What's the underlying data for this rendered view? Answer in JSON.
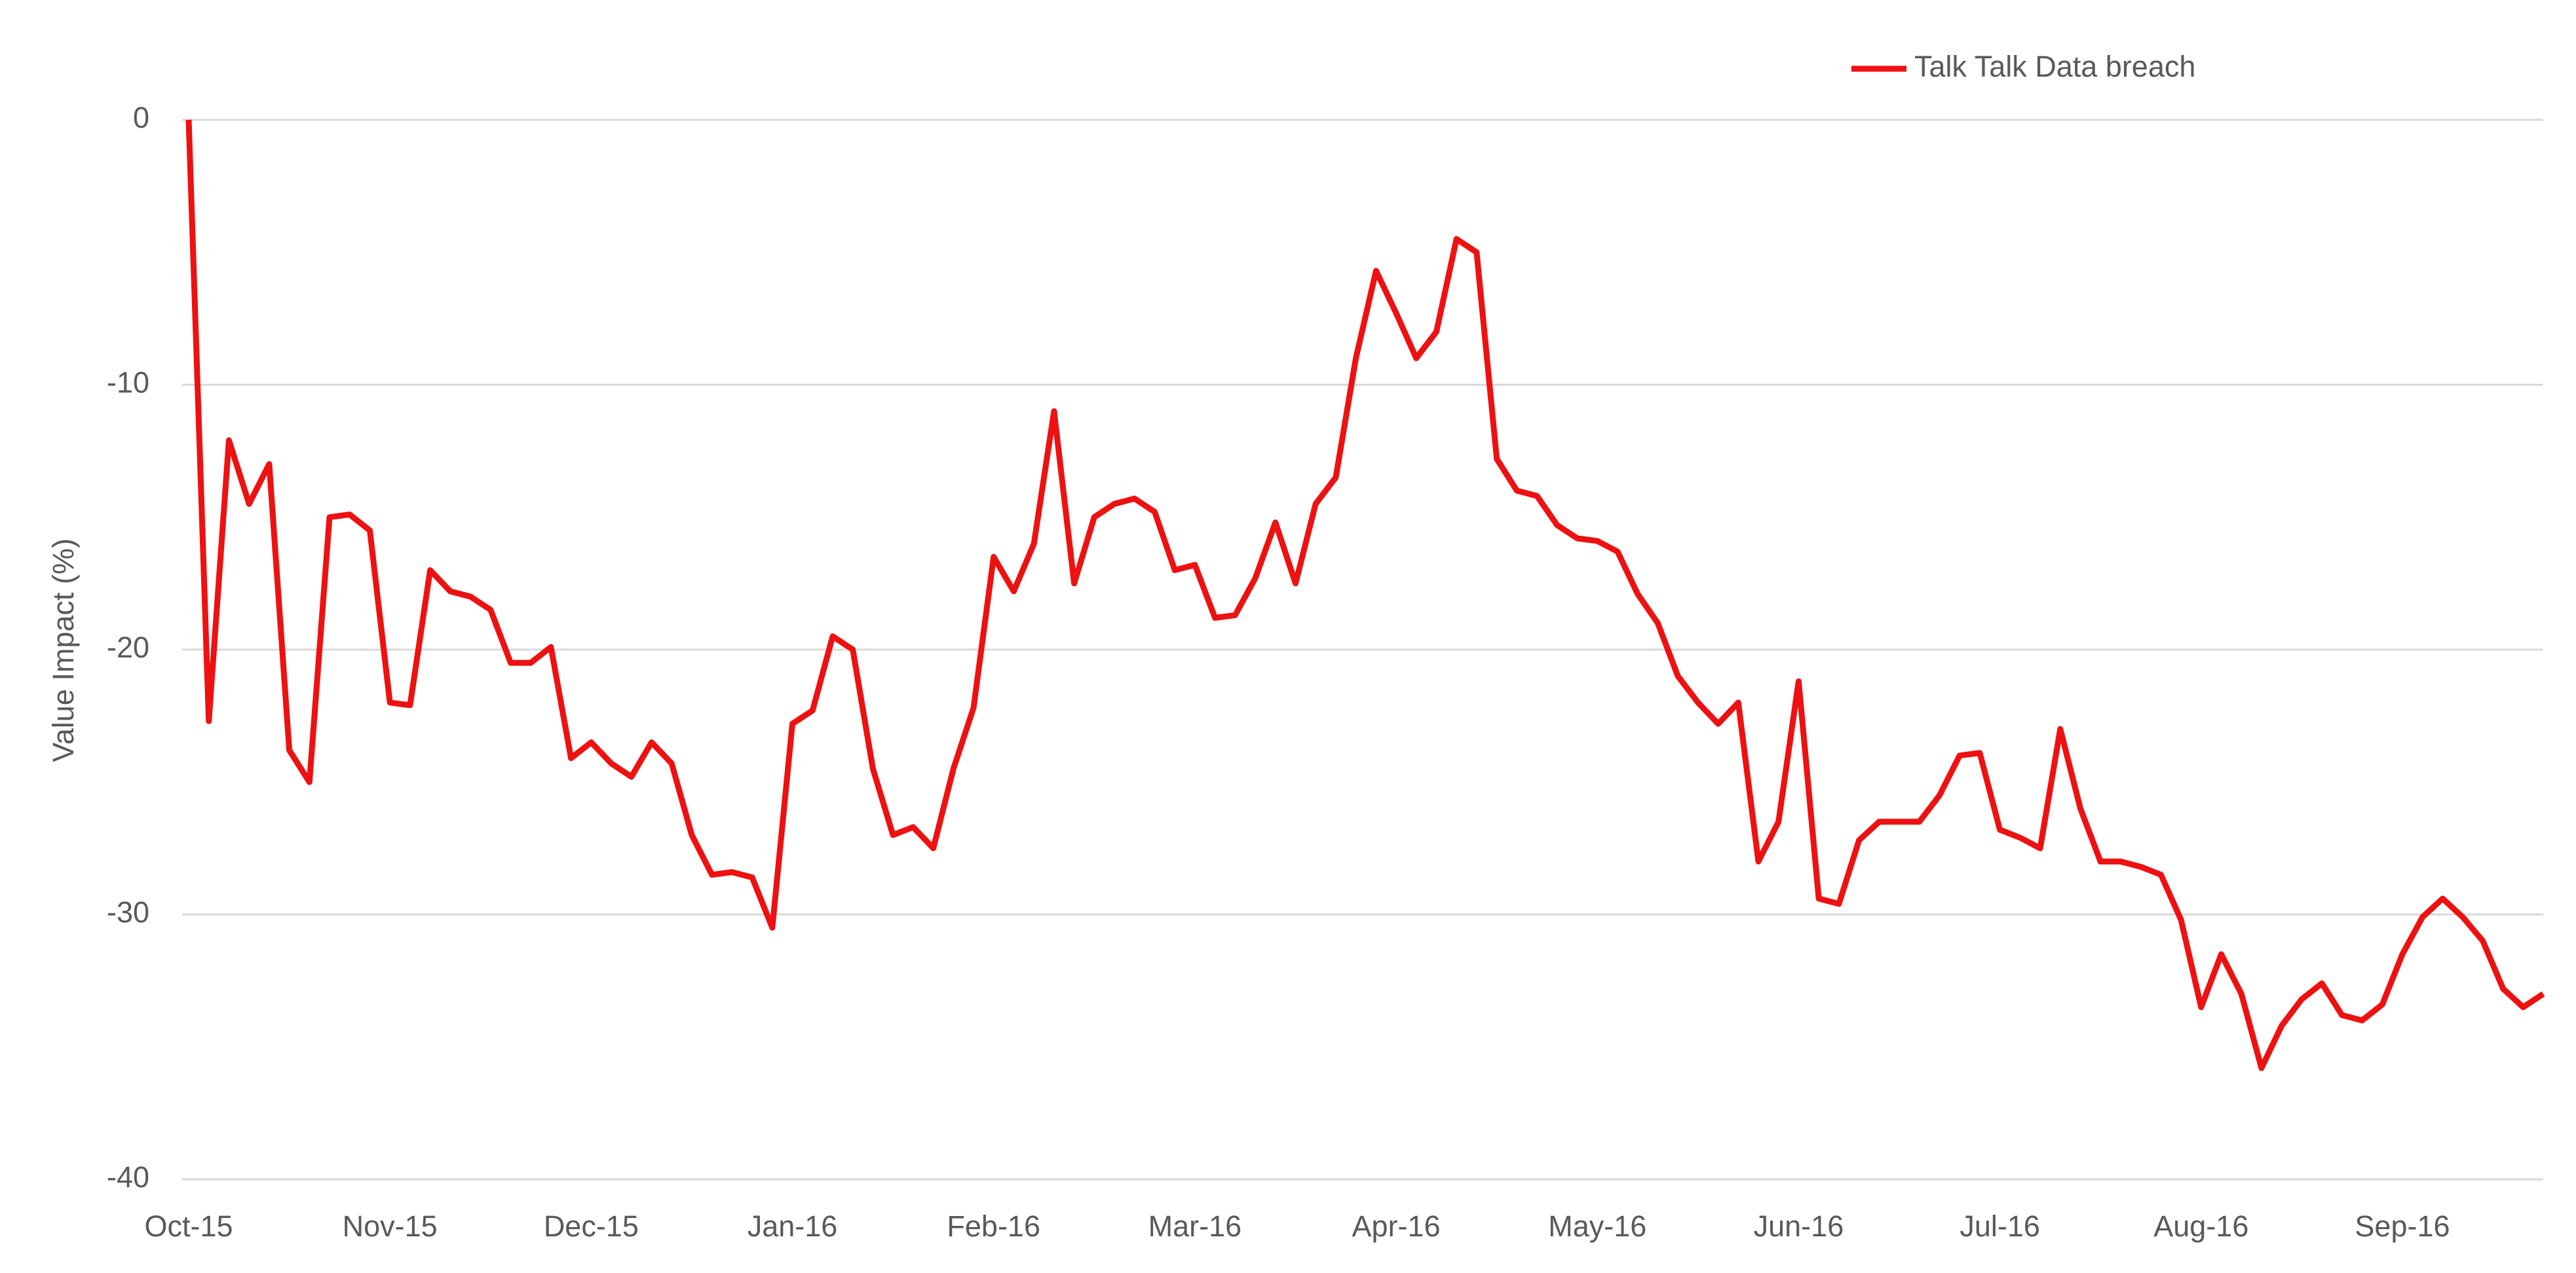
{
  "chart_data": {
    "type": "line",
    "y_label": "Value Impact (%)",
    "categories": [
      "Oct-15",
      null,
      null,
      null,
      null,
      null,
      null,
      null,
      null,
      null,
      "Nov-15",
      null,
      null,
      null,
      null,
      null,
      null,
      null,
      null,
      null,
      "Dec-15",
      null,
      null,
      null,
      null,
      null,
      null,
      null,
      null,
      null,
      "Jan-16",
      null,
      null,
      null,
      null,
      null,
      null,
      null,
      null,
      null,
      "Feb-16",
      null,
      null,
      null,
      null,
      null,
      null,
      null,
      null,
      null,
      "Mar-16",
      null,
      null,
      null,
      null,
      null,
      null,
      null,
      null,
      null,
      "Apr-16",
      null,
      null,
      null,
      null,
      null,
      null,
      null,
      null,
      null,
      "May-16",
      null,
      null,
      null,
      null,
      null,
      null,
      null,
      null,
      null,
      "Jun-16",
      null,
      null,
      null,
      null,
      null,
      null,
      null,
      null,
      null,
      "Jul-16",
      null,
      null,
      null,
      null,
      null,
      null,
      null,
      null,
      null,
      "Aug-16",
      null,
      null,
      null,
      null,
      null,
      null,
      null,
      null,
      null,
      "Sep-16",
      null,
      null,
      null,
      null,
      null,
      null,
      null
    ],
    "series": [
      {
        "name": "Talk Talk Data breach",
        "color": "#ee1111",
        "values": [
          0,
          -22.7,
          -12.1,
          -14.5,
          -13,
          -23.8,
          -25,
          -15,
          -14.9,
          -15.5,
          -22,
          -22.1,
          -17,
          -17.8,
          -18,
          -18.5,
          -20.5,
          -20.5,
          -19.9,
          -24.1,
          -23.5,
          -24.3,
          -24.8,
          -23.5,
          -24.3,
          -27,
          -28.5,
          -28.4,
          -28.6,
          -30.5,
          -22.8,
          -22.3,
          -19.5,
          -20,
          -24.5,
          -27,
          -26.7,
          -27.5,
          -24.5,
          -22.2,
          -16.5,
          -17.8,
          -16,
          -11,
          -17.5,
          -15,
          -14.5,
          -14.3,
          -14.8,
          -17,
          -16.8,
          -18.8,
          -18.7,
          -17.3,
          -15.2,
          -17.5,
          -14.5,
          -13.5,
          -9,
          -5.7,
          -7.3,
          -9,
          -8,
          -4.5,
          -5,
          -12.8,
          -14,
          -14.2,
          -15.3,
          -15.8,
          -15.9,
          -16.3,
          -17.9,
          -19,
          -21,
          -22,
          -22.8,
          -22,
          -28,
          -26.5,
          -21.2,
          -29.4,
          -29.6,
          -27.2,
          -26.5,
          -26.5,
          -26.5,
          -25.5,
          -24,
          -23.9,
          -26.8,
          -27.1,
          -27.5,
          -23,
          -26,
          -28,
          -28,
          -28.2,
          -28.5,
          -30.2,
          -33.5,
          -31.5,
          -33,
          -35.8,
          -34.2,
          -33.2,
          -32.6,
          -33.8,
          -34,
          -33.4,
          -31.5,
          -30.1,
          -29.4,
          -30.1,
          -31,
          -32.8,
          -33.5,
          -33
        ]
      }
    ],
    "ylim": [
      -40,
      0
    ],
    "yticks": [
      0,
      -10,
      -20,
      -30,
      -40
    ],
    "grid": true,
    "legend": "top-right"
  }
}
